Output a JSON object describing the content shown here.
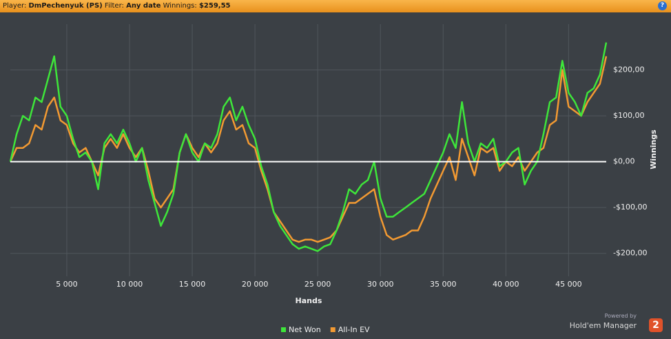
{
  "header": {
    "player_label": "Player:",
    "player": "DmPechenyuk (PS)",
    "filter_label": "Filter:",
    "filter": "Any date",
    "winnings_label": "Winnings:",
    "winnings": "$259,55",
    "help": "?"
  },
  "branding": {
    "powered_by": "Powered by",
    "product": "Hold'em Manager",
    "version": "2"
  },
  "chart_data": {
    "type": "line",
    "x_label": "Hands",
    "y_label": "Winnings",
    "x": [
      500,
      1000,
      1500,
      2000,
      2500,
      3000,
      3500,
      4000,
      4500,
      5000,
      5500,
      6000,
      6500,
      7000,
      7500,
      8000,
      8500,
      9000,
      9500,
      10000,
      10500,
      11000,
      11500,
      12000,
      12500,
      13000,
      13500,
      14000,
      14500,
      15000,
      15500,
      16000,
      16500,
      17000,
      17500,
      18000,
      18500,
      19000,
      19500,
      20000,
      20500,
      21000,
      21500,
      22000,
      22500,
      23000,
      23500,
      24000,
      24500,
      25000,
      25500,
      26000,
      26500,
      27000,
      27500,
      28000,
      28500,
      29000,
      29500,
      30000,
      30500,
      31000,
      31500,
      32000,
      32500,
      33000,
      33500,
      34000,
      34500,
      35000,
      35500,
      36000,
      36500,
      37000,
      37500,
      38000,
      38500,
      39000,
      39500,
      40000,
      40500,
      41000,
      41500,
      42000,
      42500,
      43000,
      43500,
      44000,
      44500,
      45000,
      45500,
      46000,
      46500,
      47000,
      47500,
      48000
    ],
    "series": [
      {
        "name": "Net Won",
        "color": "#3ee63a",
        "values": [
          0,
          60,
          100,
          90,
          140,
          130,
          180,
          230,
          120,
          100,
          50,
          10,
          20,
          0,
          -60,
          40,
          60,
          40,
          70,
          40,
          0,
          30,
          -40,
          -90,
          -140,
          -110,
          -70,
          20,
          60,
          20,
          0,
          40,
          30,
          60,
          120,
          140,
          90,
          120,
          80,
          50,
          -10,
          -50,
          -110,
          -140,
          -160,
          -180,
          -190,
          -185,
          -190,
          -195,
          -185,
          -180,
          -150,
          -110,
          -60,
          -70,
          -50,
          -40,
          0,
          -80,
          -120,
          -120,
          -110,
          -100,
          -90,
          -80,
          -70,
          -40,
          -10,
          20,
          60,
          30,
          130,
          40,
          0,
          40,
          30,
          50,
          -10,
          0,
          20,
          30,
          -50,
          -20,
          0,
          60,
          130,
          140,
          220,
          150,
          130,
          100,
          150,
          160,
          190,
          260
        ]
      },
      {
        "name": "All-In EV",
        "color": "#f39a32",
        "values": [
          0,
          30,
          30,
          40,
          80,
          70,
          120,
          140,
          90,
          80,
          40,
          20,
          30,
          0,
          -30,
          30,
          50,
          30,
          60,
          30,
          10,
          30,
          -20,
          -80,
          -100,
          -80,
          -60,
          20,
          60,
          30,
          10,
          40,
          20,
          40,
          90,
          110,
          70,
          80,
          40,
          30,
          -20,
          -60,
          -110,
          -130,
          -150,
          -170,
          -175,
          -170,
          -170,
          -175,
          -170,
          -165,
          -150,
          -120,
          -90,
          -90,
          -80,
          -70,
          -60,
          -120,
          -160,
          -170,
          -165,
          -160,
          -150,
          -150,
          -120,
          -80,
          -50,
          -20,
          10,
          -40,
          50,
          10,
          -30,
          30,
          20,
          30,
          -20,
          0,
          -10,
          10,
          -20,
          0,
          20,
          30,
          80,
          90,
          200,
          120,
          110,
          100,
          130,
          150,
          170,
          230
        ]
      }
    ],
    "xlim": [
      500,
      48000
    ],
    "ylim": [
      -250,
      300
    ],
    "xticks": [
      {
        "value": 5000,
        "label": "5 000"
      },
      {
        "value": 10000,
        "label": "10 000"
      },
      {
        "value": 15000,
        "label": "15 000"
      },
      {
        "value": 20000,
        "label": "20 000"
      },
      {
        "value": 25000,
        "label": "25 000"
      },
      {
        "value": 30000,
        "label": "30 000"
      },
      {
        "value": 35000,
        "label": "35 000"
      },
      {
        "value": 40000,
        "label": "40 000"
      },
      {
        "value": 45000,
        "label": "45 000"
      }
    ],
    "yticks": [
      {
        "value": -200,
        "label": "-$200,00"
      },
      {
        "value": -100,
        "label": "-$100,00"
      },
      {
        "value": 0,
        "label": "$0,00"
      },
      {
        "value": 100,
        "label": "$100,00"
      },
      {
        "value": 200,
        "label": "$200,00"
      }
    ],
    "grid": true,
    "reference_line": {
      "value": 0,
      "color": "#ffffff"
    },
    "legend": "bottom"
  }
}
